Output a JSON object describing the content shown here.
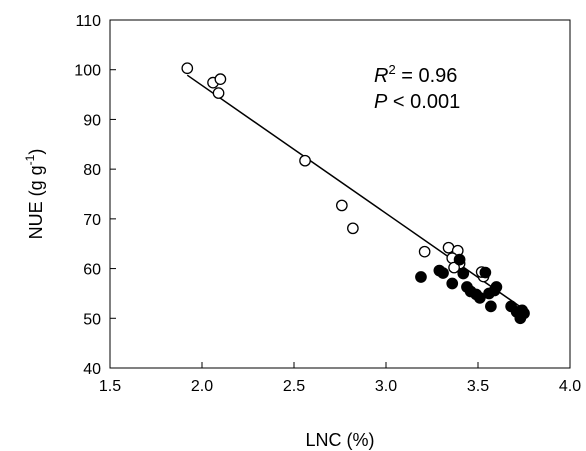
{
  "chart_data": {
    "type": "scatter",
    "title": "",
    "xlabel": "LNC (%)",
    "ylabel_main": "NUE (g g",
    "ylabel_sup": "-1",
    "ylabel_close": ")",
    "xlim": [
      1.5,
      4.0
    ],
    "ylim": [
      40,
      110
    ],
    "xticks": [
      "1.5",
      "2.0",
      "2.5",
      "3.0",
      "3.5",
      "4.0"
    ],
    "yticks": [
      "40",
      "50",
      "60",
      "70",
      "80",
      "90",
      "100",
      "110"
    ],
    "grid": false,
    "stats": {
      "r_symbol": "R",
      "r_sup": "2",
      "r_value": " = 0.96",
      "p_symbol": "P",
      "p_value": " < 0.001"
    },
    "regression": {
      "x": [
        1.92,
        3.75
      ],
      "y": [
        98.9,
        51.8
      ]
    },
    "series": [
      {
        "marker": "open-circle",
        "color": "#000000",
        "points": [
          [
            1.92,
            100.3
          ],
          [
            2.06,
            97.4
          ],
          [
            2.1,
            98.1
          ],
          [
            2.09,
            95.3
          ],
          [
            2.56,
            81.7
          ],
          [
            2.76,
            72.7
          ],
          [
            2.82,
            68.1
          ],
          [
            3.21,
            63.4
          ],
          [
            3.34,
            64.2
          ],
          [
            3.39,
            63.6
          ],
          [
            3.36,
            62.1
          ],
          [
            3.4,
            61.0
          ],
          [
            3.37,
            60.2
          ],
          [
            3.53,
            58.4
          ],
          [
            3.52,
            59.3
          ]
        ]
      },
      {
        "marker": "filled-circle",
        "color": "#000000",
        "points": [
          [
            3.19,
            58.3
          ],
          [
            3.29,
            59.6
          ],
          [
            3.31,
            59.1
          ],
          [
            3.36,
            57.0
          ],
          [
            3.4,
            61.8
          ],
          [
            3.42,
            59.0
          ],
          [
            3.44,
            56.3
          ],
          [
            3.46,
            55.4
          ],
          [
            3.49,
            54.8
          ],
          [
            3.51,
            54.1
          ],
          [
            3.54,
            59.2
          ],
          [
            3.56,
            55.0
          ],
          [
            3.57,
            52.4
          ],
          [
            3.59,
            55.6
          ],
          [
            3.6,
            56.3
          ],
          [
            3.68,
            52.4
          ],
          [
            3.71,
            51.3
          ],
          [
            3.73,
            50.0
          ],
          [
            3.74,
            51.6
          ],
          [
            3.75,
            51.0
          ]
        ]
      }
    ]
  }
}
